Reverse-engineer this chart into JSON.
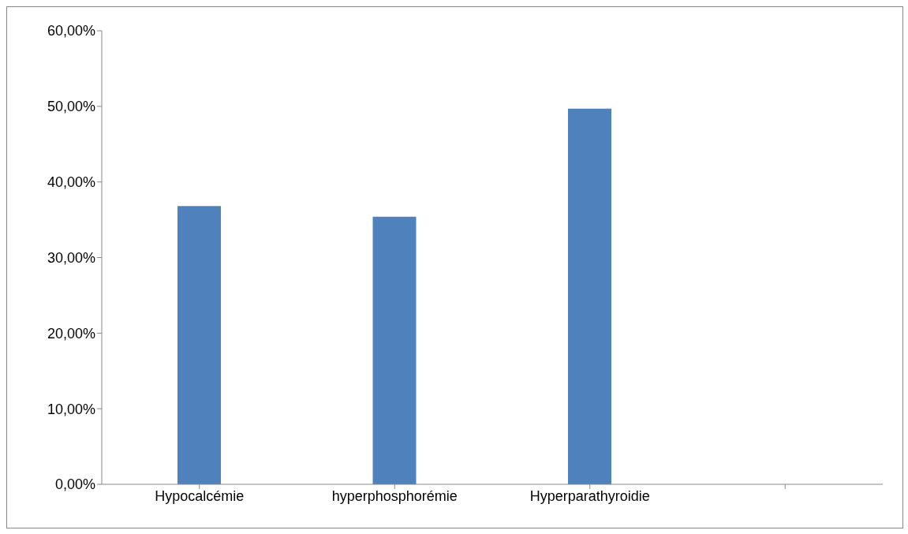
{
  "chart_data": {
    "type": "bar",
    "categories": [
      "Hypocalcémie",
      "hyperphosphorémie",
      "Hyperparathyroidie",
      null
    ],
    "values": [
      36.8,
      35.4,
      49.7,
      null
    ],
    "color": "#4f81bd",
    "ylim": [
      0,
      60
    ],
    "yticks": [
      {
        "value": 0,
        "label": "0,00%"
      },
      {
        "value": 10,
        "label": "10,00%"
      },
      {
        "value": 20,
        "label": "20,00%"
      },
      {
        "value": 30,
        "label": "30,00%"
      },
      {
        "value": 40,
        "label": "40,00%"
      },
      {
        "value": 50,
        "label": "50,00%"
      },
      {
        "value": 60,
        "label": "60,00%"
      }
    ],
    "grid": false,
    "legend": false
  }
}
